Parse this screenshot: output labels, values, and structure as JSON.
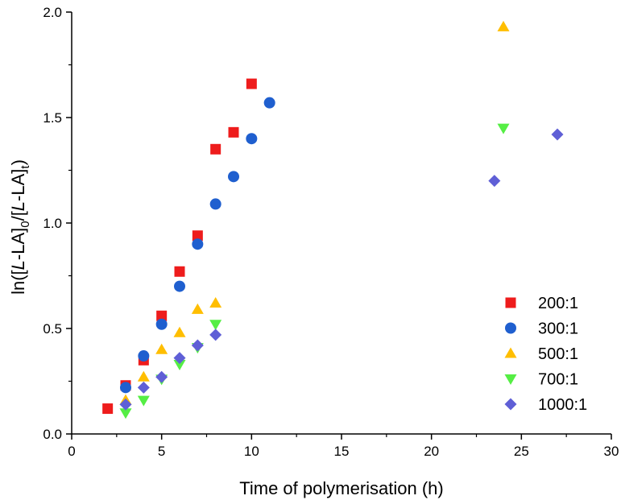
{
  "chart_data": {
    "type": "scatter",
    "title": "",
    "xlabel": "Time of polymerisation (h)",
    "ylabel_parts": {
      "p1": "ln([",
      "p2": "L",
      "p3": "-LA]",
      "sub1": "0",
      "p4": "/[",
      "p5": "L",
      "p6": "-LA]",
      "sub2": "t",
      "p7": ")"
    },
    "xlim": [
      0,
      30
    ],
    "ylim": [
      0,
      2.0
    ],
    "x_ticks": [
      0,
      5,
      10,
      15,
      20,
      25,
      30
    ],
    "x_tick_labels": [
      "0",
      "5",
      "10",
      "15",
      "20",
      "25",
      "30"
    ],
    "y_ticks": [
      0,
      0.5,
      1.0,
      1.5,
      2.0
    ],
    "y_tick_labels": [
      "0.0",
      "0.5",
      "1.0",
      "1.5",
      "2.0"
    ],
    "grid": false,
    "legend_position": "right-bottom",
    "series": [
      {
        "name": "200:1",
        "marker": "square",
        "color": "#ee1c1c",
        "x": [
          2,
          3,
          4,
          5,
          6,
          7,
          8,
          9,
          10
        ],
        "y": [
          0.12,
          0.23,
          0.35,
          0.56,
          0.77,
          0.94,
          1.35,
          1.43,
          1.66
        ]
      },
      {
        "name": "300:1",
        "marker": "circle",
        "color": "#1f5fcf",
        "x": [
          3,
          4,
          5,
          6,
          7,
          8,
          9,
          10,
          11
        ],
        "y": [
          0.22,
          0.37,
          0.52,
          0.7,
          0.9,
          1.09,
          1.22,
          1.4,
          1.57
        ]
      },
      {
        "name": "500:1",
        "marker": "triangle-up",
        "color": "#ffbe00",
        "x": [
          3,
          4,
          5,
          6,
          7,
          8,
          24
        ],
        "y": [
          0.16,
          0.27,
          0.4,
          0.48,
          0.59,
          0.62,
          1.93
        ]
      },
      {
        "name": "700:1",
        "marker": "triangle-down",
        "color": "#55ee44",
        "x": [
          3,
          4,
          5,
          6,
          7,
          8,
          24
        ],
        "y": [
          0.1,
          0.16,
          0.26,
          0.33,
          0.41,
          0.52,
          1.45
        ]
      },
      {
        "name": "1000:1",
        "marker": "diamond",
        "color": "#5f5fd6",
        "x": [
          3,
          4,
          5,
          6,
          7,
          8,
          23.5,
          27
        ],
        "y": [
          0.14,
          0.22,
          0.27,
          0.36,
          0.42,
          0.47,
          1.2,
          1.42
        ]
      }
    ]
  }
}
